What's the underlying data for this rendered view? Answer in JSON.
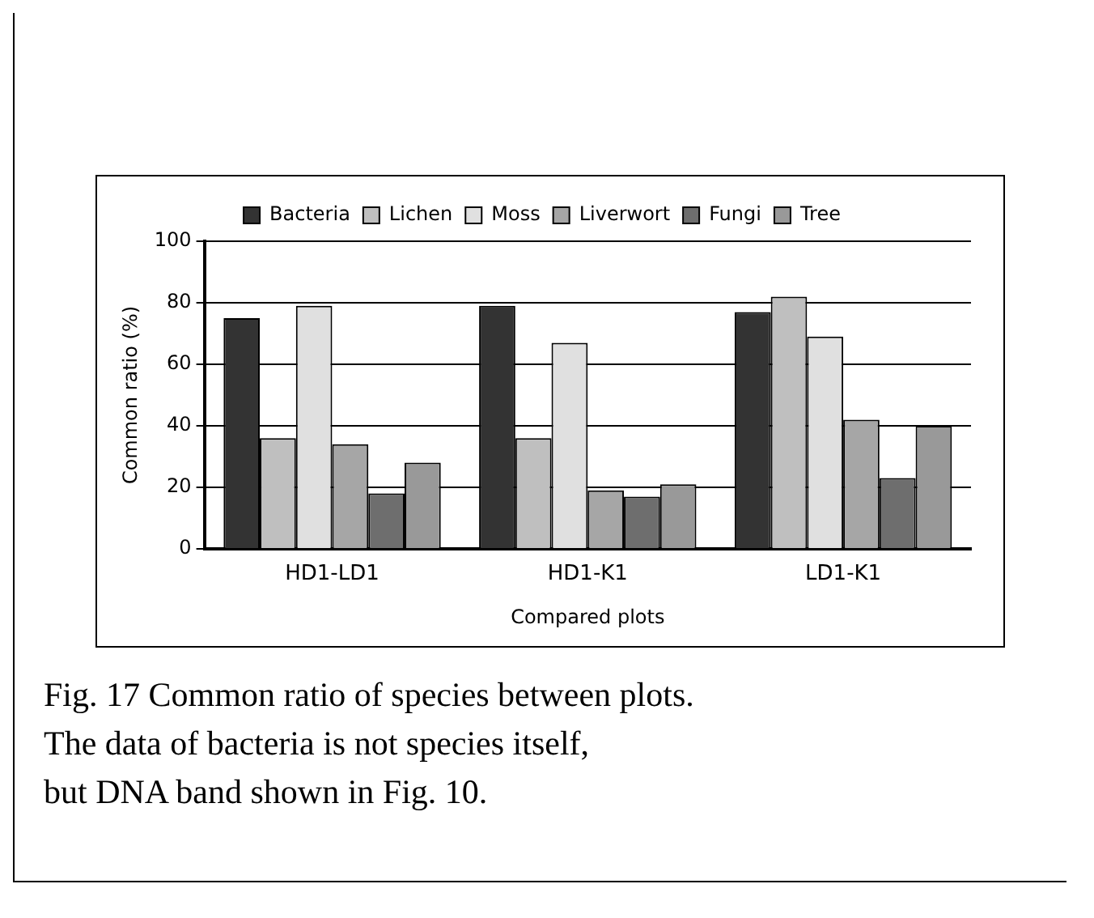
{
  "chart_data": {
    "type": "bar",
    "xlabel": "Compared plots",
    "ylabel": "Common ratio (%)",
    "categories": [
      "HD1-LD1",
      "HD1-K1",
      "LD1-K1"
    ],
    "series": [
      {
        "name": "Bacteria",
        "color": "#333333",
        "values": [
          75,
          79,
          77
        ]
      },
      {
        "name": "Lichen",
        "color": "#bfbfbf",
        "values": [
          36,
          36,
          82
        ]
      },
      {
        "name": "Moss",
        "color": "#e0e0e0",
        "values": [
          79,
          67,
          69
        ]
      },
      {
        "name": "Liverwort",
        "color": "#a6a6a6",
        "values": [
          34,
          19,
          42
        ]
      },
      {
        "name": "Fungi",
        "color": "#6e6e6e",
        "values": [
          18,
          17,
          23
        ]
      },
      {
        "name": "Tree",
        "color": "#999999",
        "values": [
          28,
          21,
          40
        ]
      }
    ],
    "ylim": [
      0,
      100
    ],
    "yticks": [
      0,
      20,
      40,
      60,
      80,
      100
    ],
    "grid": "y",
    "legend": "top",
    "annotations": [
      "Fig. 17 Common ratio of species between plots.",
      "The data of bacteria is not species itself,",
      "but DNA band shown in Fig. 10."
    ]
  }
}
